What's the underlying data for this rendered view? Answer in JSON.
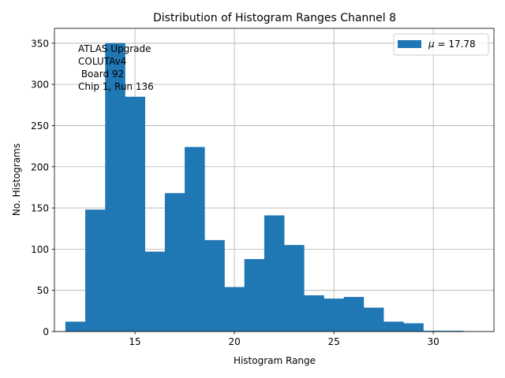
{
  "chart_data": {
    "type": "bar",
    "title": "Distribution of Histogram Ranges Channel 8",
    "xlabel": "Histogram Range",
    "ylabel": "No. Histograms",
    "xlim": [
      10.95,
      33.05
    ],
    "ylim": [
      0,
      368
    ],
    "xticks": [
      15,
      20,
      25,
      30
    ],
    "yticks": [
      0,
      50,
      100,
      150,
      200,
      250,
      300,
      350
    ],
    "grid": true,
    "bar_color": "#1f77b4",
    "bins": [
      {
        "x0": 11.5,
        "x1": 12.5,
        "value": 12
      },
      {
        "x0": 12.5,
        "x1": 13.5,
        "value": 148
      },
      {
        "x0": 13.5,
        "x1": 14.5,
        "value": 350
      },
      {
        "x0": 14.5,
        "x1": 15.5,
        "value": 285
      },
      {
        "x0": 15.5,
        "x1": 16.5,
        "value": 97
      },
      {
        "x0": 16.5,
        "x1": 17.5,
        "value": 168
      },
      {
        "x0": 17.5,
        "x1": 18.5,
        "value": 224
      },
      {
        "x0": 18.5,
        "x1": 19.5,
        "value": 111
      },
      {
        "x0": 19.5,
        "x1": 20.5,
        "value": 54
      },
      {
        "x0": 20.5,
        "x1": 21.5,
        "value": 88
      },
      {
        "x0": 21.5,
        "x1": 22.5,
        "value": 141
      },
      {
        "x0": 22.5,
        "x1": 23.5,
        "value": 105
      },
      {
        "x0": 23.5,
        "x1": 24.5,
        "value": 44
      },
      {
        "x0": 24.5,
        "x1": 25.5,
        "value": 40
      },
      {
        "x0": 25.5,
        "x1": 26.5,
        "value": 42
      },
      {
        "x0": 26.5,
        "x1": 27.5,
        "value": 29
      },
      {
        "x0": 27.5,
        "x1": 28.5,
        "value": 12
      },
      {
        "x0": 28.5,
        "x1": 29.5,
        "value": 10
      },
      {
        "x0": 29.5,
        "x1": 30.5,
        "value": 1
      },
      {
        "x0": 30.5,
        "x1": 31.5,
        "value": 1
      },
      {
        "x0": 31.5,
        "x1": 32.5,
        "value": 0
      }
    ],
    "legend": {
      "placement": "top-right",
      "entries": [
        {
          "label": "μ = 17.78",
          "symbol": "μ",
          "text": " = 17.78"
        }
      ]
    },
    "annotation": [
      "ATLAS Upgrade",
      "COLUTAv4",
      " Board 92",
      "Chip 1, Run 136"
    ]
  }
}
